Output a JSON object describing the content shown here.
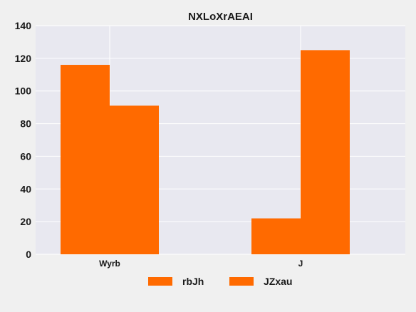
{
  "chart_data": {
    "type": "bar",
    "title": "NXLoXrAEAI",
    "xlabel": "",
    "ylabel": "",
    "categories": [
      "Wyrb",
      "J"
    ],
    "series": [
      {
        "name": "rbJh",
        "values": [
          116,
          22
        ]
      },
      {
        "name": "JZxau",
        "values": [
          91,
          125
        ]
      }
    ],
    "ylim": [
      0,
      140
    ],
    "yticks": [
      0,
      20,
      40,
      60,
      80,
      100,
      120,
      140
    ],
    "grid": true,
    "legend_position": "bottom",
    "colors": {
      "bar": "#ff6a00",
      "plot_background": "#e8e8f0",
      "page_background": "#f0f0f0",
      "grid": "#ffffff"
    }
  }
}
